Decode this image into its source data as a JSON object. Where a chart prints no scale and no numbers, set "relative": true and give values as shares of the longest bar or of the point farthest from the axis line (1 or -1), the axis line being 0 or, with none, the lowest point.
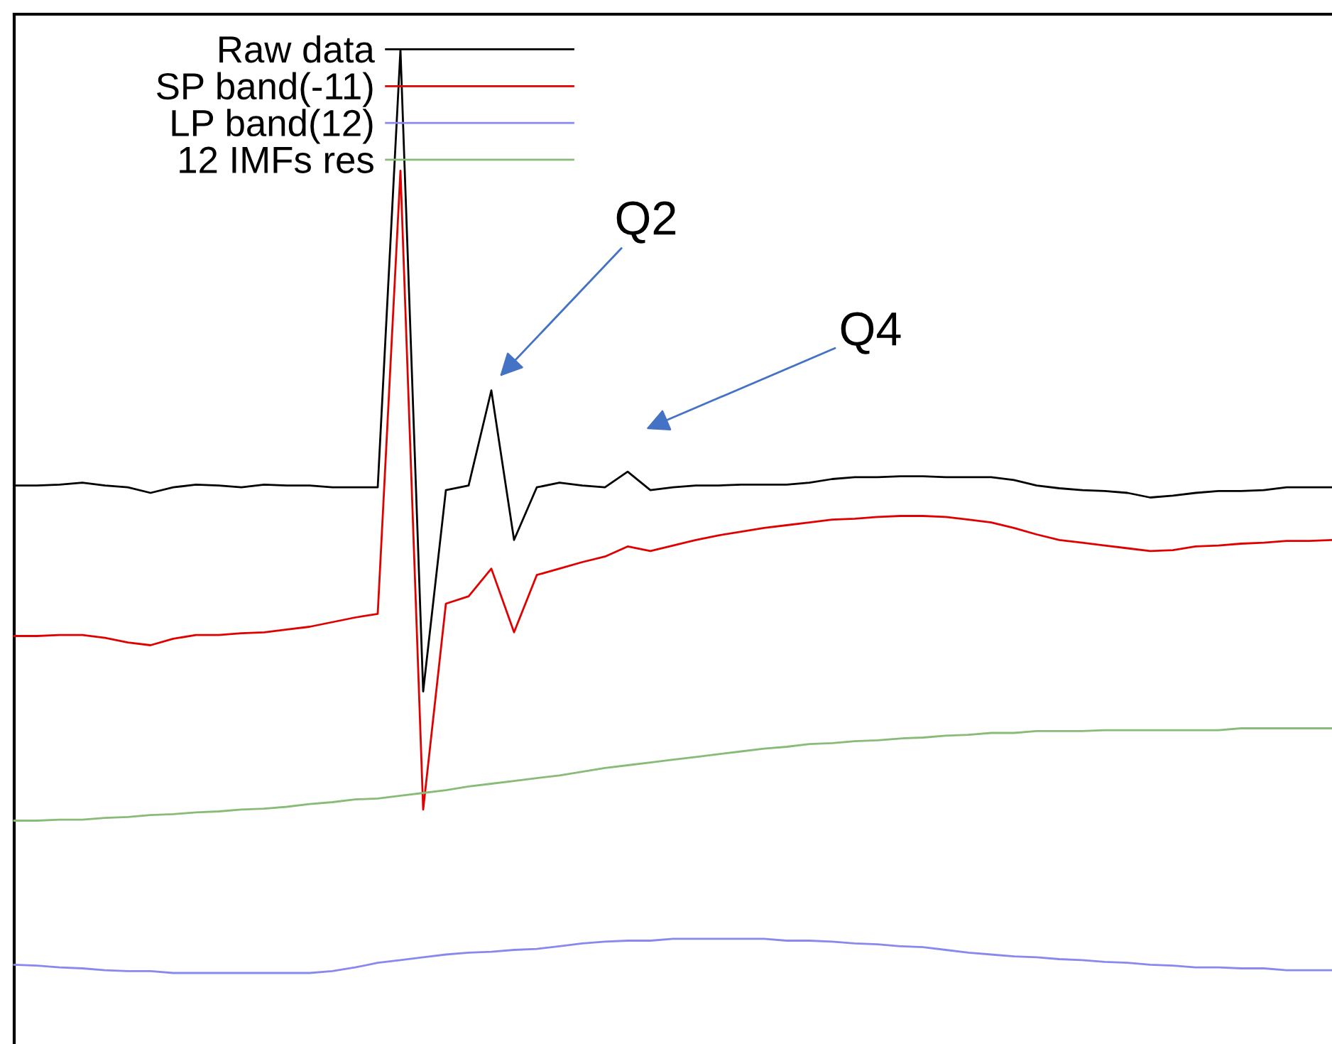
{
  "chart_data": {
    "type": "line",
    "relative": true,
    "categories": [
      null,
      null,
      null,
      null,
      null,
      null,
      null,
      null,
      null,
      null,
      null,
      null,
      null,
      null,
      null,
      null,
      null,
      null,
      null,
      null,
      null,
      null,
      null,
      null,
      null,
      null,
      null,
      null,
      null,
      null,
      null,
      null,
      null,
      null,
      null,
      null,
      null,
      null,
      null,
      null,
      null,
      null,
      null,
      null,
      null,
      null,
      null,
      null,
      null,
      null,
      null,
      null,
      null,
      null,
      null,
      null,
      null,
      null,
      null
    ],
    "series": [
      {
        "name": "Raw data",
        "color": "#000000",
        "values": [
          0.528,
          0.528,
          0.529,
          0.531,
          0.528,
          0.526,
          0.52,
          0.526,
          0.529,
          0.528,
          0.526,
          0.529,
          0.528,
          0.528,
          0.526,
          0.526,
          0.526,
          1,
          0.305,
          0.523,
          0.528,
          0.631,
          0.469,
          0.526,
          0.531,
          0.528,
          0.526,
          0.543,
          0.523,
          0.526,
          0.528,
          0.528,
          0.529,
          0.529,
          0.529,
          0.531,
          0.535,
          0.537,
          0.537,
          0.538,
          0.538,
          0.537,
          0.537,
          0.537,
          0.534,
          0.528,
          0.525,
          0.523,
          0.522,
          0.52,
          0.515,
          0.517,
          0.52,
          0.522,
          0.522,
          0.523,
          0.526,
          0.526,
          0.526
        ]
      },
      {
        "name": "SP band(-11)",
        "color": "#e00000",
        "values": [
          0.365,
          0.365,
          0.366,
          0.366,
          0.363,
          0.358,
          0.355,
          0.362,
          0.366,
          0.366,
          0.368,
          0.369,
          0.372,
          0.375,
          0.38,
          0.385,
          0.389,
          0.869,
          0.177,
          0.4,
          0.408,
          0.438,
          0.369,
          0.431,
          0.438,
          0.445,
          0.451,
          0.462,
          0.457,
          0.463,
          0.469,
          0.474,
          0.478,
          0.482,
          0.485,
          0.488,
          0.491,
          0.492,
          0.494,
          0.495,
          0.495,
          0.494,
          0.491,
          0.488,
          0.482,
          0.475,
          0.469,
          0.466,
          0.463,
          0.46,
          0.457,
          0.458,
          0.462,
          0.463,
          0.465,
          0.466,
          0.468,
          0.468,
          0.469
        ]
      },
      {
        "name": "LP band(12)",
        "color": "#8888ee",
        "values": [
          0.009,
          0.008,
          0.006,
          0.005,
          0.003,
          0.002,
          0.002,
          0,
          0,
          0,
          0,
          0,
          0,
          0,
          0.002,
          0.006,
          0.011,
          0.014,
          0.017,
          0.02,
          0.022,
          0.023,
          0.025,
          0.026,
          0.029,
          0.032,
          0.034,
          0.035,
          0.035,
          0.037,
          0.037,
          0.037,
          0.037,
          0.037,
          0.035,
          0.035,
          0.034,
          0.032,
          0.031,
          0.029,
          0.028,
          0.025,
          0.022,
          0.02,
          0.018,
          0.017,
          0.015,
          0.014,
          0.012,
          0.011,
          0.009,
          0.008,
          0.006,
          0.006,
          0.005,
          0.005,
          0.003,
          0.003,
          0.003
        ]
      },
      {
        "name": "12 IMFs res",
        "color": "#88bb77",
        "values": [
          0.165,
          0.165,
          0.166,
          0.166,
          0.168,
          0.169,
          0.171,
          0.172,
          0.174,
          0.175,
          0.177,
          0.178,
          0.18,
          0.183,
          0.185,
          0.188,
          0.189,
          0.192,
          0.195,
          0.198,
          0.202,
          0.205,
          0.208,
          0.211,
          0.214,
          0.218,
          0.222,
          0.225,
          0.228,
          0.231,
          0.234,
          0.237,
          0.24,
          0.243,
          0.245,
          0.248,
          0.249,
          0.251,
          0.252,
          0.254,
          0.255,
          0.257,
          0.258,
          0.26,
          0.26,
          0.262,
          0.262,
          0.262,
          0.263,
          0.263,
          0.263,
          0.263,
          0.263,
          0.263,
          0.265,
          0.265,
          0.265,
          0.265,
          0.265
        ]
      }
    ],
    "annotations": [
      "Q2",
      "Q4"
    ],
    "legend": "top left",
    "marker": "none",
    "line_style": "solid"
  }
}
